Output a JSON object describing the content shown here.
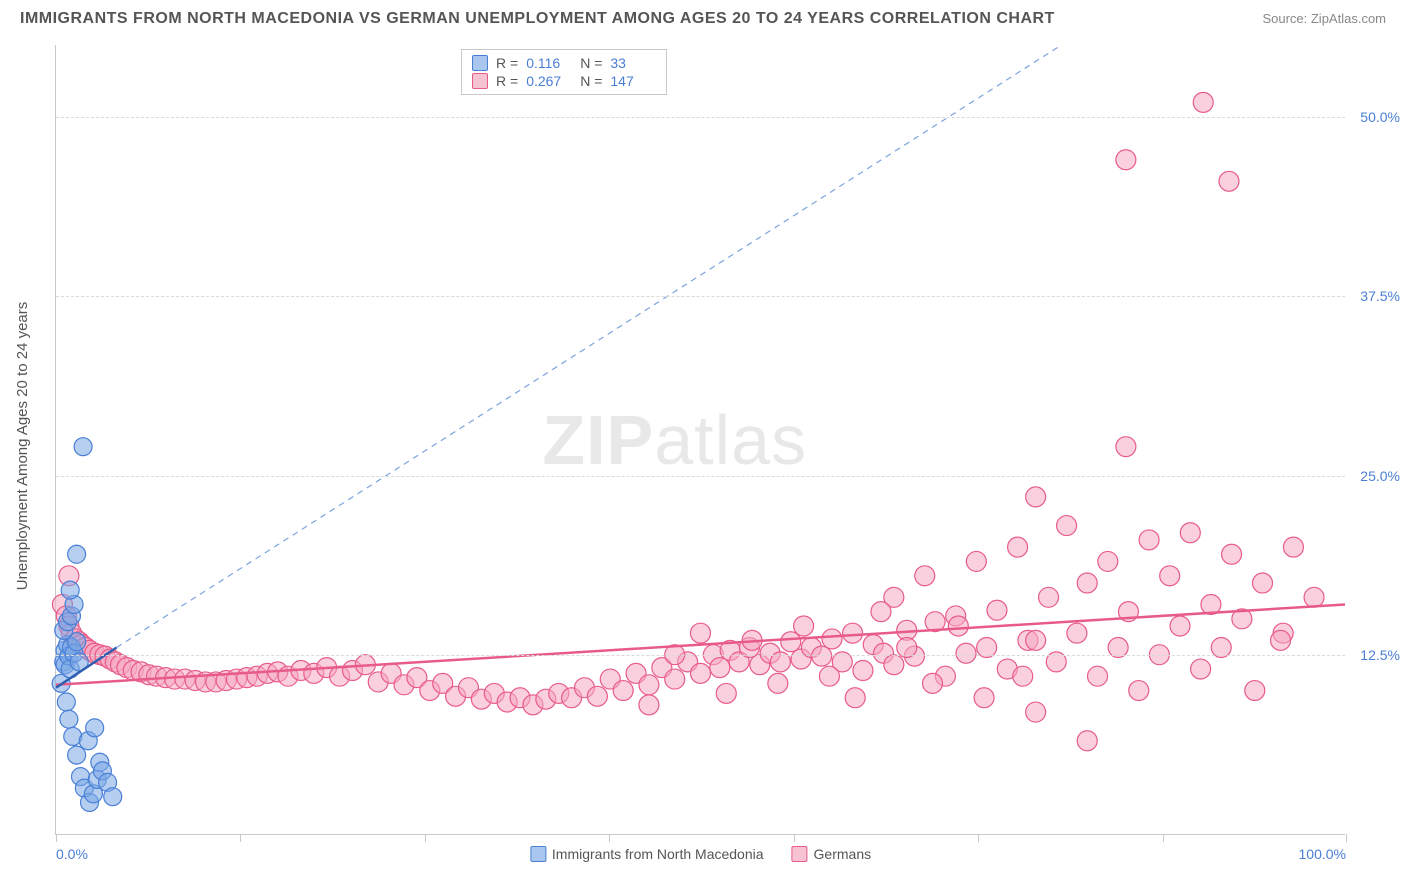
{
  "header": {
    "title": "IMMIGRANTS FROM NORTH MACEDONIA VS GERMAN UNEMPLOYMENT AMONG AGES 20 TO 24 YEARS CORRELATION CHART",
    "source": "Source: ZipAtlas.com"
  },
  "ylabel": "Unemployment Among Ages 20 to 24 years",
  "watermark": {
    "bold": "ZIP",
    "rest": "atlas"
  },
  "axes": {
    "xlim": [
      0,
      100
    ],
    "ylim": [
      0,
      55
    ],
    "yticks": [
      {
        "v": 12.5,
        "label": "12.5%"
      },
      {
        "v": 25.0,
        "label": "25.0%"
      },
      {
        "v": 37.5,
        "label": "37.5%"
      },
      {
        "v": 50.0,
        "label": "50.0%"
      }
    ],
    "xticks_minor": [
      0,
      14.3,
      28.6,
      42.9,
      57.2,
      71.5,
      85.8,
      100
    ],
    "xtick_labels": [
      {
        "v": 0,
        "label": "0.0%",
        "pos": "left"
      },
      {
        "v": 100,
        "label": "100.0%",
        "pos": "right"
      }
    ],
    "grid_color": "#d9d9d9",
    "axis_color": "#c9c9c9",
    "tick_label_color": "#4a7fd6",
    "background_color": "#ffffff"
  },
  "stats_box": {
    "rows": [
      {
        "swatch_fill": "#a9c7ee",
        "swatch_stroke": "#4a7fd6",
        "r_label": "R =",
        "r": "0.116",
        "n_label": "N =",
        "n": "33"
      },
      {
        "swatch_fill": "#f7c3d2",
        "swatch_stroke": "#e85b89",
        "r_label": "R =",
        "r": "0.267",
        "n_label": "N =",
        "n": "147"
      }
    ]
  },
  "legend": {
    "items": [
      {
        "swatch_fill": "#a9c7ee",
        "swatch_stroke": "#4a7fd6",
        "label": "Immigrants from North Macedonia"
      },
      {
        "swatch_fill": "#f7c3d2",
        "swatch_stroke": "#e85b89",
        "label": "Germans"
      }
    ]
  },
  "series": {
    "blue": {
      "marker_fill": "rgba(122,168,230,0.55)",
      "marker_stroke": "#4a7fd6",
      "marker_r": 9,
      "trend_solid": {
        "x1": 0,
        "y1": 10.2,
        "x2": 4.7,
        "y2": 13.0,
        "color": "#2f5fb0",
        "width": 2.5
      },
      "trend_dash": {
        "x1": 4.7,
        "y1": 13.0,
        "x2": 78,
        "y2": 55,
        "color": "#7aa4df",
        "width": 1.2,
        "dash": "6 5"
      },
      "points": [
        [
          0.4,
          10.5
        ],
        [
          0.6,
          12.0
        ],
        [
          0.7,
          12.8
        ],
        [
          0.9,
          13.2
        ],
        [
          0.7,
          11.8
        ],
        [
          1.0,
          12.4
        ],
        [
          1.2,
          13.0
        ],
        [
          1.1,
          11.5
        ],
        [
          1.4,
          12.6
        ],
        [
          1.6,
          13.4
        ],
        [
          1.8,
          12.0
        ],
        [
          0.6,
          14.2
        ],
        [
          0.9,
          14.8
        ],
        [
          1.2,
          15.2
        ],
        [
          1.4,
          16.0
        ],
        [
          1.1,
          17.0
        ],
        [
          1.6,
          19.5
        ],
        [
          2.1,
          27.0
        ],
        [
          0.8,
          9.2
        ],
        [
          1.0,
          8.0
        ],
        [
          1.3,
          6.8
        ],
        [
          1.6,
          5.5
        ],
        [
          1.9,
          4.0
        ],
        [
          2.2,
          3.2
        ],
        [
          2.6,
          2.2
        ],
        [
          2.9,
          2.8
        ],
        [
          3.2,
          3.8
        ],
        [
          3.4,
          5.0
        ],
        [
          2.5,
          6.5
        ],
        [
          3.0,
          7.4
        ],
        [
          3.6,
          4.4
        ],
        [
          4.0,
          3.6
        ],
        [
          4.4,
          2.6
        ]
      ]
    },
    "pink": {
      "marker_fill": "rgba(245,168,195,0.55)",
      "marker_stroke": "#e85b89",
      "marker_r": 10,
      "trend_solid": {
        "x1": 0,
        "y1": 10.4,
        "x2": 100,
        "y2": 16.0,
        "color": "#e85b89",
        "width": 2.5
      },
      "points": [
        [
          0.5,
          16.0
        ],
        [
          0.8,
          15.2
        ],
        [
          1.0,
          14.5
        ],
        [
          1.2,
          14.0
        ],
        [
          1.5,
          13.6
        ],
        [
          1.8,
          13.4
        ],
        [
          2.0,
          13.2
        ],
        [
          2.3,
          13.0
        ],
        [
          2.6,
          12.8
        ],
        [
          3.0,
          12.6
        ],
        [
          3.4,
          12.5
        ],
        [
          3.8,
          12.4
        ],
        [
          4.2,
          12.2
        ],
        [
          4.6,
          12.0
        ],
        [
          5.0,
          11.8
        ],
        [
          5.5,
          11.6
        ],
        [
          6.0,
          11.4
        ],
        [
          6.6,
          11.3
        ],
        [
          7.2,
          11.1
        ],
        [
          7.8,
          11.0
        ],
        [
          8.5,
          10.9
        ],
        [
          9.2,
          10.8
        ],
        [
          10.0,
          10.8
        ],
        [
          10.8,
          10.7
        ],
        [
          11.6,
          10.6
        ],
        [
          12.4,
          10.6
        ],
        [
          13.2,
          10.7
        ],
        [
          14.0,
          10.8
        ],
        [
          14.8,
          10.9
        ],
        [
          15.6,
          11.0
        ],
        [
          16.4,
          11.2
        ],
        [
          17.2,
          11.3
        ],
        [
          18.0,
          11.0
        ],
        [
          19.0,
          11.4
        ],
        [
          20.0,
          11.2
        ],
        [
          21.0,
          11.6
        ],
        [
          22.0,
          11.0
        ],
        [
          23.0,
          11.4
        ],
        [
          24.0,
          11.8
        ],
        [
          25.0,
          10.6
        ],
        [
          26.0,
          11.2
        ],
        [
          27.0,
          10.4
        ],
        [
          28.0,
          10.9
        ],
        [
          29.0,
          10.0
        ],
        [
          30.0,
          10.5
        ],
        [
          31.0,
          9.6
        ],
        [
          32.0,
          10.2
        ],
        [
          33.0,
          9.4
        ],
        [
          34.0,
          9.8
        ],
        [
          35.0,
          9.2
        ],
        [
          36.0,
          9.5
        ],
        [
          37.0,
          9.0
        ],
        [
          38.0,
          9.4
        ],
        [
          39.0,
          9.8
        ],
        [
          40.0,
          9.5
        ],
        [
          41.0,
          10.2
        ],
        [
          42.0,
          9.6
        ],
        [
          43.0,
          10.8
        ],
        [
          44.0,
          10.0
        ],
        [
          45.0,
          11.2
        ],
        [
          46.0,
          10.4
        ],
        [
          47.0,
          11.6
        ],
        [
          48.0,
          10.8
        ],
        [
          49.0,
          12.0
        ],
        [
          50.0,
          11.2
        ],
        [
          51.0,
          12.5
        ],
        [
          51.5,
          11.6
        ],
        [
          52.3,
          12.8
        ],
        [
          53.0,
          12.0
        ],
        [
          53.8,
          13.0
        ],
        [
          54.6,
          11.8
        ],
        [
          55.4,
          12.6
        ],
        [
          56.2,
          12.0
        ],
        [
          57.0,
          13.4
        ],
        [
          57.8,
          12.2
        ],
        [
          58.6,
          13.0
        ],
        [
          59.4,
          12.4
        ],
        [
          60.2,
          13.6
        ],
        [
          61.0,
          12.0
        ],
        [
          61.8,
          14.0
        ],
        [
          62.6,
          11.4
        ],
        [
          63.4,
          13.2
        ],
        [
          64.2,
          12.6
        ],
        [
          65.0,
          16.5
        ],
        [
          65.0,
          11.8
        ],
        [
          66.0,
          14.2
        ],
        [
          66.6,
          12.4
        ],
        [
          67.4,
          18.0
        ],
        [
          68.2,
          14.8
        ],
        [
          69.0,
          11.0
        ],
        [
          69.8,
          15.2
        ],
        [
          70.6,
          12.6
        ],
        [
          71.4,
          19.0
        ],
        [
          72.2,
          13.0
        ],
        [
          73.0,
          15.6
        ],
        [
          73.8,
          11.5
        ],
        [
          74.6,
          20.0
        ],
        [
          75.4,
          13.5
        ],
        [
          76.0,
          23.5
        ],
        [
          76.0,
          8.5
        ],
        [
          77.0,
          16.5
        ],
        [
          77.6,
          12.0
        ],
        [
          78.4,
          21.5
        ],
        [
          79.2,
          14.0
        ],
        [
          80.0,
          17.5
        ],
        [
          80.0,
          6.5
        ],
        [
          80.8,
          11.0
        ],
        [
          81.6,
          19.0
        ],
        [
          82.4,
          13.0
        ],
        [
          83.0,
          27.0
        ],
        [
          83.2,
          15.5
        ],
        [
          84.0,
          10.0
        ],
        [
          84.8,
          20.5
        ],
        [
          85.6,
          12.5
        ],
        [
          86.4,
          18.0
        ],
        [
          87.2,
          14.5
        ],
        [
          88.0,
          21.0
        ],
        [
          88.8,
          11.5
        ],
        [
          89.6,
          16.0
        ],
        [
          90.4,
          13.0
        ],
        [
          91.0,
          45.5
        ],
        [
          91.2,
          19.5
        ],
        [
          92.0,
          15.0
        ],
        [
          89.0,
          51.0
        ],
        [
          93.6,
          17.5
        ],
        [
          83.0,
          47.0
        ],
        [
          95.2,
          14.0
        ],
        [
          96.0,
          20.0
        ],
        [
          93.0,
          10.0
        ],
        [
          97.6,
          16.5
        ],
        [
          95.0,
          13.5
        ],
        [
          76.0,
          13.5
        ],
        [
          75.0,
          11.0
        ],
        [
          72.0,
          9.5
        ],
        [
          70.0,
          14.5
        ],
        [
          68.0,
          10.5
        ],
        [
          66.0,
          13.0
        ],
        [
          64.0,
          15.5
        ],
        [
          62.0,
          9.5
        ],
        [
          60.0,
          11.0
        ],
        [
          58.0,
          14.5
        ],
        [
          56.0,
          10.5
        ],
        [
          54.0,
          13.5
        ],
        [
          52.0,
          9.8
        ],
        [
          50.0,
          14.0
        ],
        [
          48.0,
          12.5
        ],
        [
          46.0,
          9.0
        ],
        [
          1.0,
          18.0
        ]
      ]
    }
  }
}
